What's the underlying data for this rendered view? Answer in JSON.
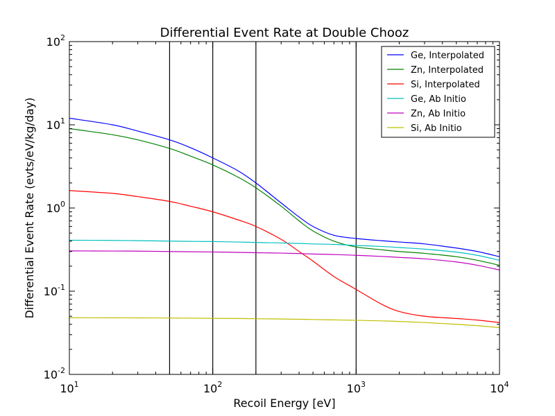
{
  "chart_data": {
    "type": "line",
    "title": "Differential Event Rate at Double Chooz",
    "xlabel": "Recoil Energy [eV]",
    "ylabel": "Differential Event Rate (evts/eV/kg/day)",
    "xscale": "log",
    "yscale": "log",
    "xlim": [
      10,
      10000
    ],
    "ylim": [
      0.01,
      100
    ],
    "x_ticks": [
      {
        "value": 10,
        "base": "10",
        "exp": "1"
      },
      {
        "value": 100,
        "base": "10",
        "exp": "2"
      },
      {
        "value": 1000,
        "base": "10",
        "exp": "3"
      },
      {
        "value": 10000,
        "base": "10",
        "exp": "4"
      }
    ],
    "y_ticks": [
      {
        "value": 0.01,
        "base": "10",
        "exp": "-2"
      },
      {
        "value": 0.1,
        "base": "10",
        "exp": "-1"
      },
      {
        "value": 1,
        "base": "10",
        "exp": "0"
      },
      {
        "value": 10,
        "base": "10",
        "exp": "1"
      },
      {
        "value": 100,
        "base": "10",
        "exp": "2"
      }
    ],
    "vertical_lines": [
      50,
      100,
      200,
      1000
    ],
    "legend_position": "top-right",
    "grid": false,
    "x": [
      10,
      20,
      30,
      50,
      70,
      100,
      150,
      200,
      300,
      400,
      500,
      700,
      1000,
      1500,
      2000,
      3000,
      5000,
      7000,
      10000
    ],
    "series": [
      {
        "name": "Ge, Interpolated",
        "color": "#0000ff",
        "values": [
          12.0,
          10.0,
          8.4,
          6.6,
          5.3,
          4.0,
          2.8,
          2.0,
          1.15,
          0.78,
          0.6,
          0.47,
          0.43,
          0.405,
          0.39,
          0.37,
          0.33,
          0.3,
          0.26
        ]
      },
      {
        "name": "Zn, Interpolated",
        "color": "#008000",
        "values": [
          9.0,
          7.6,
          6.6,
          5.2,
          4.2,
          3.3,
          2.35,
          1.75,
          1.05,
          0.7,
          0.53,
          0.4,
          0.34,
          0.315,
          0.3,
          0.285,
          0.26,
          0.235,
          0.205
        ]
      },
      {
        "name": "Si, Interpolated",
        "color": "#ff0000",
        "values": [
          1.62,
          1.5,
          1.37,
          1.2,
          1.05,
          0.9,
          0.72,
          0.6,
          0.42,
          0.3,
          0.23,
          0.15,
          0.105,
          0.07,
          0.057,
          0.05,
          0.047,
          0.045,
          0.042
        ]
      },
      {
        "name": "Ge, Ab Initio",
        "color": "#00bfbf",
        "values": [
          0.41,
          0.408,
          0.405,
          0.4,
          0.397,
          0.395,
          0.39,
          0.385,
          0.38,
          0.375,
          0.37,
          0.365,
          0.355,
          0.345,
          0.335,
          0.32,
          0.295,
          0.27,
          0.235
        ]
      },
      {
        "name": "Zn, Ab Initio",
        "color": "#bf00bf",
        "values": [
          0.305,
          0.304,
          0.303,
          0.3,
          0.298,
          0.296,
          0.293,
          0.29,
          0.287,
          0.284,
          0.28,
          0.276,
          0.27,
          0.262,
          0.255,
          0.245,
          0.225,
          0.205,
          0.18
        ]
      },
      {
        "name": "Si, Ab Initio",
        "color": "#bfbf00",
        "values": [
          0.048,
          0.0479,
          0.0478,
          0.0476,
          0.0474,
          0.0472,
          0.047,
          0.0467,
          0.0463,
          0.046,
          0.0457,
          0.0452,
          0.0447,
          0.044,
          0.0433,
          0.042,
          0.04,
          0.0385,
          0.0365
        ]
      }
    ]
  }
}
